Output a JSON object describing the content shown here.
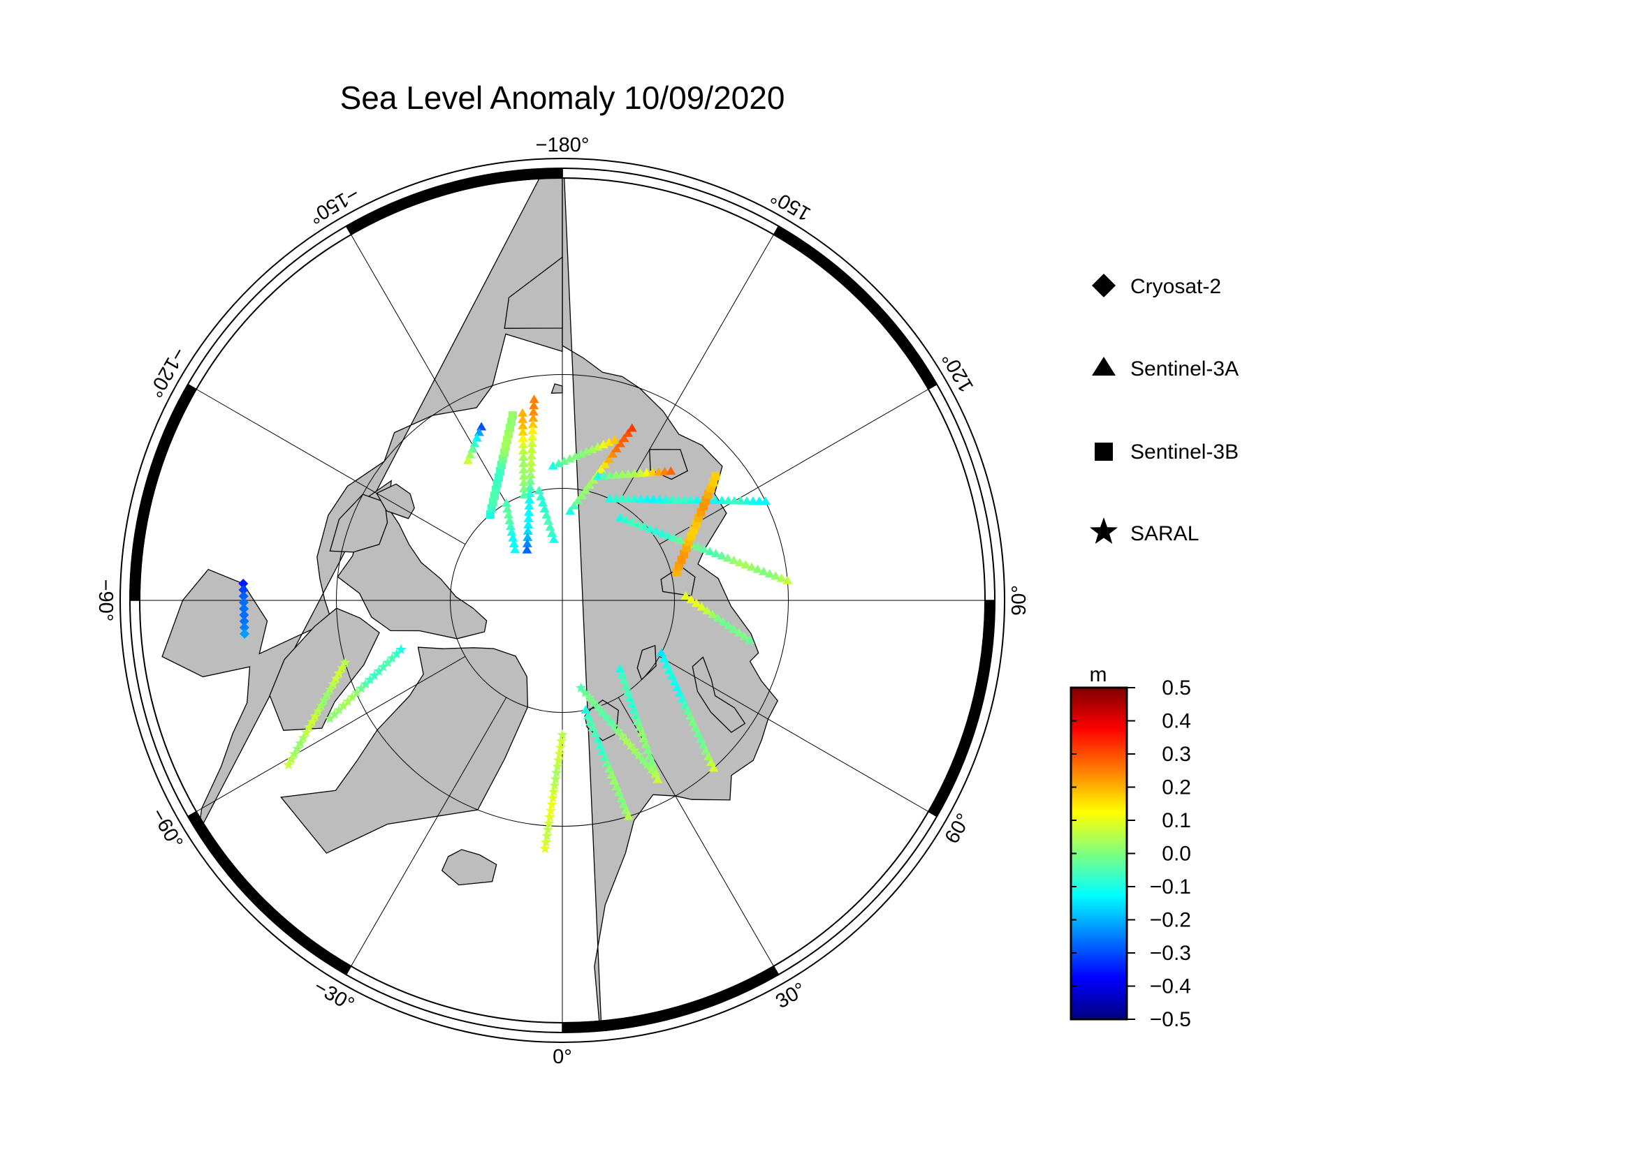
{
  "title": "Sea Level Anomaly 10/09/2020",
  "projection": "north-polar-stereographic",
  "center_longitude_at_bottom": 0,
  "longitude_labels": [
    {
      "lon": 0,
      "text": "0°"
    },
    {
      "lon": 30,
      "text": "30°"
    },
    {
      "lon": 60,
      "text": "60°"
    },
    {
      "lon": 90,
      "text": "90°"
    },
    {
      "lon": 120,
      "text": "120°"
    },
    {
      "lon": 150,
      "text": "150°"
    },
    {
      "lon": 180,
      "text": "−180°"
    },
    {
      "lon": -150,
      "text": "−150°"
    },
    {
      "lon": -120,
      "text": "−120°"
    },
    {
      "lon": -90,
      "text": "−90°"
    },
    {
      "lon": -60,
      "text": "−60°"
    },
    {
      "lon": -30,
      "text": "−30°"
    }
  ],
  "legend": {
    "items": [
      {
        "label": "Cryosat-2",
        "icon": "diamond-icon"
      },
      {
        "label": "Sentinel-3A",
        "icon": "triangle-icon"
      },
      {
        "label": "Sentinel-3B",
        "icon": "square-icon"
      },
      {
        "label": "SARAL",
        "icon": "star-icon"
      }
    ]
  },
  "colorbar": {
    "unit": "m",
    "min": -0.5,
    "max": 0.5,
    "ticks": [
      "0.5",
      "0.4",
      "0.3",
      "0.2",
      "0.1",
      "0.0",
      "−0.1",
      "−0.2",
      "−0.3",
      "−0.4",
      "−0.5"
    ],
    "colormap": [
      "#00007f",
      "#0000ff",
      "#007fff",
      "#00ffff",
      "#7fff7f",
      "#ffff00",
      "#ff7f00",
      "#ff0000",
      "#7f0000"
    ]
  },
  "colors": {
    "land": "#bdbdbd",
    "ocean": "#ffffff",
    "frame": "#000000"
  },
  "chart_data": {
    "type": "scatter",
    "description_units": "track endpoints in longitude/latitude degrees; values in metres",
    "tracks": [
      {
        "satellite": "Sentinel-3A",
        "start": [
          -172,
          72
        ],
        "end": [
          -145,
          84.5
        ],
        "v0": 0.25,
        "v1": -0.25
      },
      {
        "satellite": "Sentinel-3A",
        "start": [
          -172,
          84.5
        ],
        "end": [
          -168,
          80
        ],
        "v0": -0.1,
        "v1": -0.05
      },
      {
        "satellite": "Sentinel-3A",
        "start": [
          -168,
          73
        ],
        "end": [
          -160,
          80
        ],
        "v0": 0.2,
        "v1": -0.05
      },
      {
        "satellite": "Sentinel-3A",
        "start": [
          -155,
          73
        ],
        "end": [
          -146,
          75
        ],
        "v0": -0.3,
        "v1": 0.1
      },
      {
        "satellite": "Sentinel-3A",
        "start": [
          -150,
          80
        ],
        "end": [
          -137,
          83.8
        ],
        "v0": -0.05,
        "v1": -0.1
      },
      {
        "satellite": "Sentinel-3A",
        "start": [
          175,
          82
        ],
        "end": [
          158,
          73.5
        ],
        "v0": -0.1,
        "v1": 0.35
      },
      {
        "satellite": "Sentinel-3A",
        "start": [
          -176,
          78
        ],
        "end": [
          162,
          75
        ],
        "v0": -0.1,
        "v1": 0.15
      },
      {
        "satellite": "Sentinel-3A",
        "start": [
          164,
          78.5
        ],
        "end": [
          140,
          75
        ],
        "v0": -0.1,
        "v1": 0.25
      },
      {
        "satellite": "Sentinel-3A",
        "start": [
          155,
          80
        ],
        "end": [
          116,
          70
        ],
        "v0": -0.1,
        "v1": -0.1
      },
      {
        "satellite": "Sentinel-3A",
        "start": [
          145,
          81
        ],
        "end": [
          95,
          70
        ],
        "v0": -0.1,
        "v1": 0.05
      },
      {
        "satellite": "Sentinel-3A",
        "start": [
          92,
          79
        ],
        "end": [
          78,
          73
        ],
        "v0": 0.1,
        "v1": -0.05
      },
      {
        "satellite": "Sentinel-3A",
        "start": [
          62,
          80
        ],
        "end": [
          42,
          70
        ],
        "v0": -0.15,
        "v1": 0.05
      },
      {
        "satellite": "Sentinel-3A",
        "start": [
          40,
          82
        ],
        "end": [
          28,
          72
        ],
        "v0": -0.1,
        "v1": 0.05
      },
      {
        "satellite": "Sentinel-3A",
        "start": [
          12,
          80
        ],
        "end": [
          17,
          70
        ],
        "v0": -0.1,
        "v1": 0.05
      },
      {
        "satellite": "SARAL",
        "start": [
          0,
          78
        ],
        "end": [
          -4,
          68
        ],
        "v0": 0.05,
        "v1": 0.1
      },
      {
        "satellite": "SARAL",
        "start": [
          12,
          82
        ],
        "end": [
          28,
          72.5
        ],
        "v0": -0.05,
        "v1": 0.05
      },
      {
        "satellite": "SARAL",
        "start": [
          -74,
          70
        ],
        "end": [
          -59,
          62
        ],
        "v0": 0.05,
        "v1": 0.05
      },
      {
        "satellite": "SARAL",
        "start": [
          -73,
          75
        ],
        "end": [
          -63,
          67
        ],
        "v0": -0.1,
        "v1": 0.05
      },
      {
        "satellite": "Sentinel-3B",
        "start": [
          -140,
          80
        ],
        "end": [
          -165,
          73
        ],
        "v0": -0.1,
        "v1": 0.05
      },
      {
        "satellite": "Sentinel-3B",
        "start": [
          104,
          79.5
        ],
        "end": [
          129,
          72.5
        ],
        "v0": 0.2,
        "v1": 0.2
      },
      {
        "satellite": "Cryosat-2",
        "start": [
          -93,
          62
        ],
        "end": [
          -84,
          62
        ],
        "v0": -0.35,
        "v1": -0.2
      }
    ]
  }
}
